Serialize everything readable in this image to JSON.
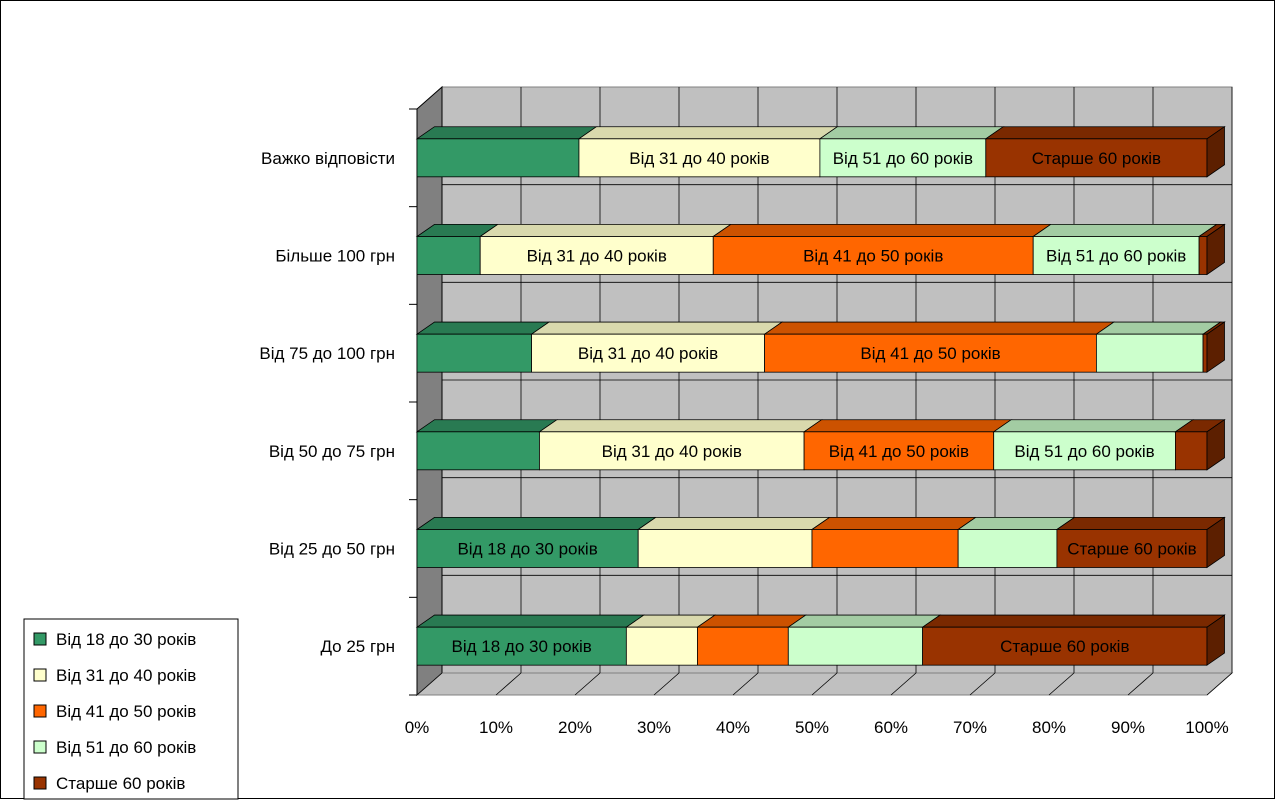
{
  "chart_data": {
    "type": "bar",
    "orientation": "horizontal",
    "stacked": "percent",
    "three_d": true,
    "grid": true,
    "legend_position": "bottom-left",
    "xlim": [
      0,
      100
    ],
    "x_ticks": [
      "0%",
      "10%",
      "20%",
      "30%",
      "40%",
      "50%",
      "60%",
      "70%",
      "80%",
      "90%",
      "100%"
    ],
    "categories": [
      "Важко відповісти",
      "Більше 100 грн",
      "Від 75 до 100 грн",
      "Від 50 до 75 грн",
      "Від 25 до 50 грн",
      "До 25 грн"
    ],
    "series": [
      {
        "name": "Від 18 до 30 років",
        "color": "#339966",
        "values": [
          20.5,
          8,
          14.5,
          15.5,
          28,
          26.5
        ],
        "data_labels": [
          "",
          "",
          "",
          "",
          "Від 18 до 30 років",
          "Від 18 до 30 років"
        ]
      },
      {
        "name": "Від 31 до 40 років",
        "color": "#FFFFCC",
        "values": [
          30.5,
          29.5,
          29.5,
          33.5,
          22,
          9
        ],
        "data_labels": [
          "Від 31 до 40 років",
          "Від 31 до 40 років",
          "Від 31 до 40 років",
          "Від 31 до 40 років",
          "",
          ""
        ]
      },
      {
        "name": "Від 41 до 50 років",
        "color": "#FF6600",
        "values": [
          0,
          40.5,
          42,
          24,
          18.5,
          11.5
        ],
        "data_labels": [
          "",
          "Від 41 до 50 років",
          "Від 41 до 50 років",
          "Від 41 до 50 років",
          "",
          ""
        ]
      },
      {
        "name": "Від 51 до 60 років",
        "color": "#CCFFCC",
        "values": [
          21,
          21,
          13.5,
          23,
          12.5,
          17
        ],
        "data_labels": [
          "Від 51 до 60 років",
          "Від 51 до 60 років",
          "",
          "Від 51 до 60 років",
          "",
          ""
        ]
      },
      {
        "name": "Старше 60 років",
        "color": "#993300",
        "values": [
          28,
          1,
          0.5,
          4,
          19,
          36
        ],
        "data_labels": [
          "Старше 60 років",
          "",
          "",
          "",
          "Старше 60 років",
          "Старше 60 років"
        ]
      }
    ]
  }
}
